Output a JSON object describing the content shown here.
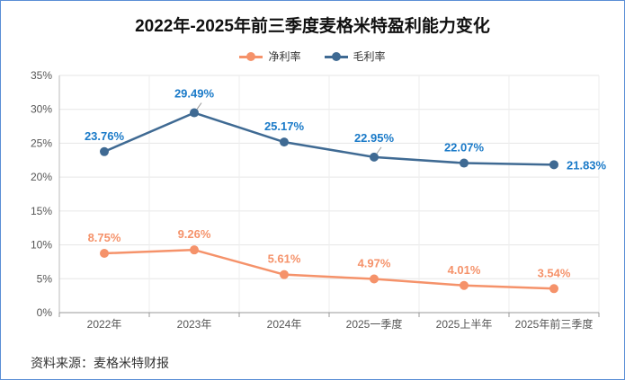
{
  "chart_data": {
    "type": "line",
    "title": "2022年-2025年前三季度麦格米特盈利能力变化",
    "categories": [
      "2022年",
      "2023年",
      "2024年",
      "2025一季度",
      "2025上半年",
      "2025年前三季度"
    ],
    "series": [
      {
        "name": "净利率",
        "color": "#f5926a",
        "values": [
          8.75,
          9.26,
          5.61,
          4.97,
          4.01,
          3.54
        ],
        "labels": [
          "8.75%",
          "9.26%",
          "5.61%",
          "4.97%",
          "4.01%",
          "3.54%"
        ]
      },
      {
        "name": "毛利率",
        "color": "#3f6a93",
        "label_color": "#1a7ac8",
        "values": [
          23.76,
          29.49,
          25.17,
          22.95,
          22.07,
          21.83
        ],
        "labels": [
          "23.76%",
          "29.49%",
          "25.17%",
          "22.95%",
          "22.07%",
          "21.83%"
        ]
      }
    ],
    "ylim": [
      0,
      35
    ],
    "yticks": [
      "0%",
      "5%",
      "10%",
      "15%",
      "20%",
      "25%",
      "30%",
      "35%"
    ],
    "legend_position": "top-center"
  },
  "source": "资料来源：麦格米特财报"
}
